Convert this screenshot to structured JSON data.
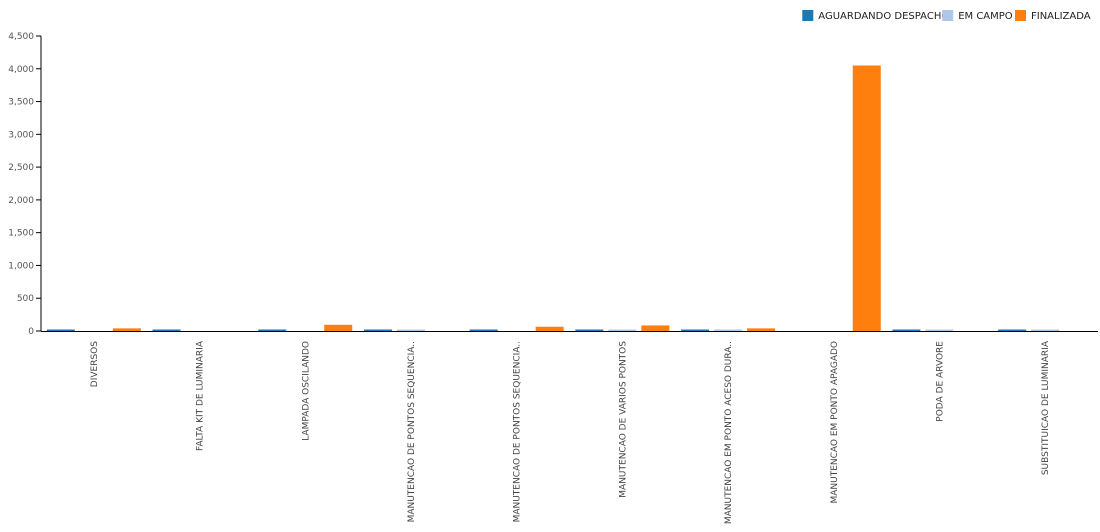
{
  "chart_data": {
    "type": "bar",
    "categories": [
      "DIVERSOS",
      "FALTA KIT DE LUMINARIA",
      "LAMPADA OSCILANDO",
      "MANUTENCAO DE PONTOS SEQUENCIA..",
      "MANUTENCAO DE PONTOS SEQUENCIA..",
      "MANUTENCAO DE VARIOS PONTOS",
      "MANUTENCAO EM PONTO ACESO DURA..",
      "MANUTENCAO EM PONTO APAGADO",
      "PODA DE ARVORE",
      "SUBSTITUICAO DE LUMINARIA"
    ],
    "series": [
      {
        "name": "AGUARDANDO DESPACHO",
        "color": "#1f77b4",
        "values": [
          1,
          1,
          1,
          1,
          1,
          1,
          1,
          0,
          1,
          1
        ]
      },
      {
        "name": "EM CAMPO",
        "color": "#aec7e8",
        "values": [
          0,
          0,
          0,
          1,
          0,
          1,
          1,
          0,
          1,
          1
        ]
      },
      {
        "name": "FINALIZADA",
        "color": "#ff7f0e",
        "values": [
          40,
          0,
          95,
          0,
          65,
          85,
          40,
          4050,
          0,
          0
        ]
      }
    ],
    "ylim": [
      0,
      4500
    ],
    "yticks": [
      "0",
      "500",
      "1,000",
      "1,500",
      "2,000",
      "2,500",
      "3,000",
      "3,500",
      "4,000",
      "4,500"
    ],
    "ytick_values": [
      0,
      500,
      1000,
      1500,
      2000,
      2500,
      3000,
      3500,
      4000,
      4500
    ],
    "legend_position": "top-right",
    "grid": false
  }
}
